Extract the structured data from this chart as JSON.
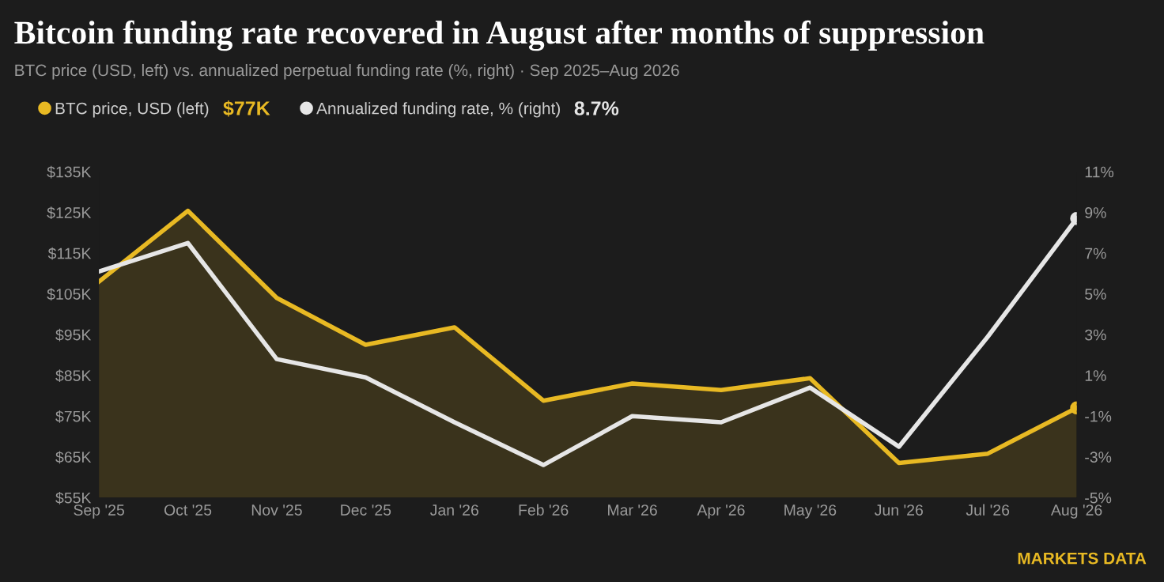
{
  "chart_data": {
    "type": "area",
    "title": "Bitcoin funding rate recovered in August after months of suppression",
    "subtitle": "BTC price (USD, left) vs. annualized perpetual funding rate (%, right) · Sep 2025–Aug 2026",
    "categories": [
      "Sep '25",
      "Oct '25",
      "Nov '25",
      "Dec '25",
      "Jan '26",
      "Feb '26",
      "Mar '26",
      "Apr '26",
      "May '26",
      "Jun '26",
      "Jul '26",
      "Aug '26"
    ],
    "series": [
      {
        "name": "BTC price, USD (left)",
        "color": "#e8b923",
        "values": [
          108000,
          125400,
          104000,
          92500,
          96800,
          78800,
          83000,
          81400,
          84300,
          63500,
          65800,
          77000
        ]
      },
      {
        "name": "Annualized funding rate, % (right)",
        "type": "line",
        "axis": "y2",
        "color": "#e6e6e6",
        "values": [
          6.1,
          7.5,
          1.8,
          0.9,
          -1.3,
          -3.4,
          -1.0,
          -1.3,
          0.4,
          -2.5,
          2.9,
          8.7
        ]
      }
    ],
    "ylim": [
      55000,
      135000
    ],
    "yticks": [
      {
        "value": 55000,
        "label": "$55K"
      },
      {
        "value": 65000,
        "label": "$65K"
      },
      {
        "value": 75000,
        "label": "$75K"
      },
      {
        "value": 85000,
        "label": "$85K"
      },
      {
        "value": 95000,
        "label": "$95K"
      },
      {
        "value": 105000,
        "label": "$105K"
      },
      {
        "value": 115000,
        "label": "$115K"
      },
      {
        "value": 125000,
        "label": "$125K"
      },
      {
        "value": 135000,
        "label": "$135K"
      }
    ],
    "y2lim": [
      -5,
      11
    ],
    "y2ticks": [
      {
        "value": -5,
        "label": "-5%"
      },
      {
        "value": -3,
        "label": "-3%"
      },
      {
        "value": -1,
        "label": "-1%"
      },
      {
        "value": 1,
        "label": "1%"
      },
      {
        "value": 3,
        "label": "3%"
      },
      {
        "value": 5,
        "label": "5%"
      },
      {
        "value": 7,
        "label": "7%"
      },
      {
        "value": 9,
        "label": "9%"
      },
      {
        "value": 11,
        "label": "11%"
      }
    ],
    "annotations": [
      "$77K",
      "8.7%",
      "MARKETS DATA"
    ],
    "legend": "top left",
    "grid": false,
    "marker": "none",
    "line_style": "solid"
  }
}
